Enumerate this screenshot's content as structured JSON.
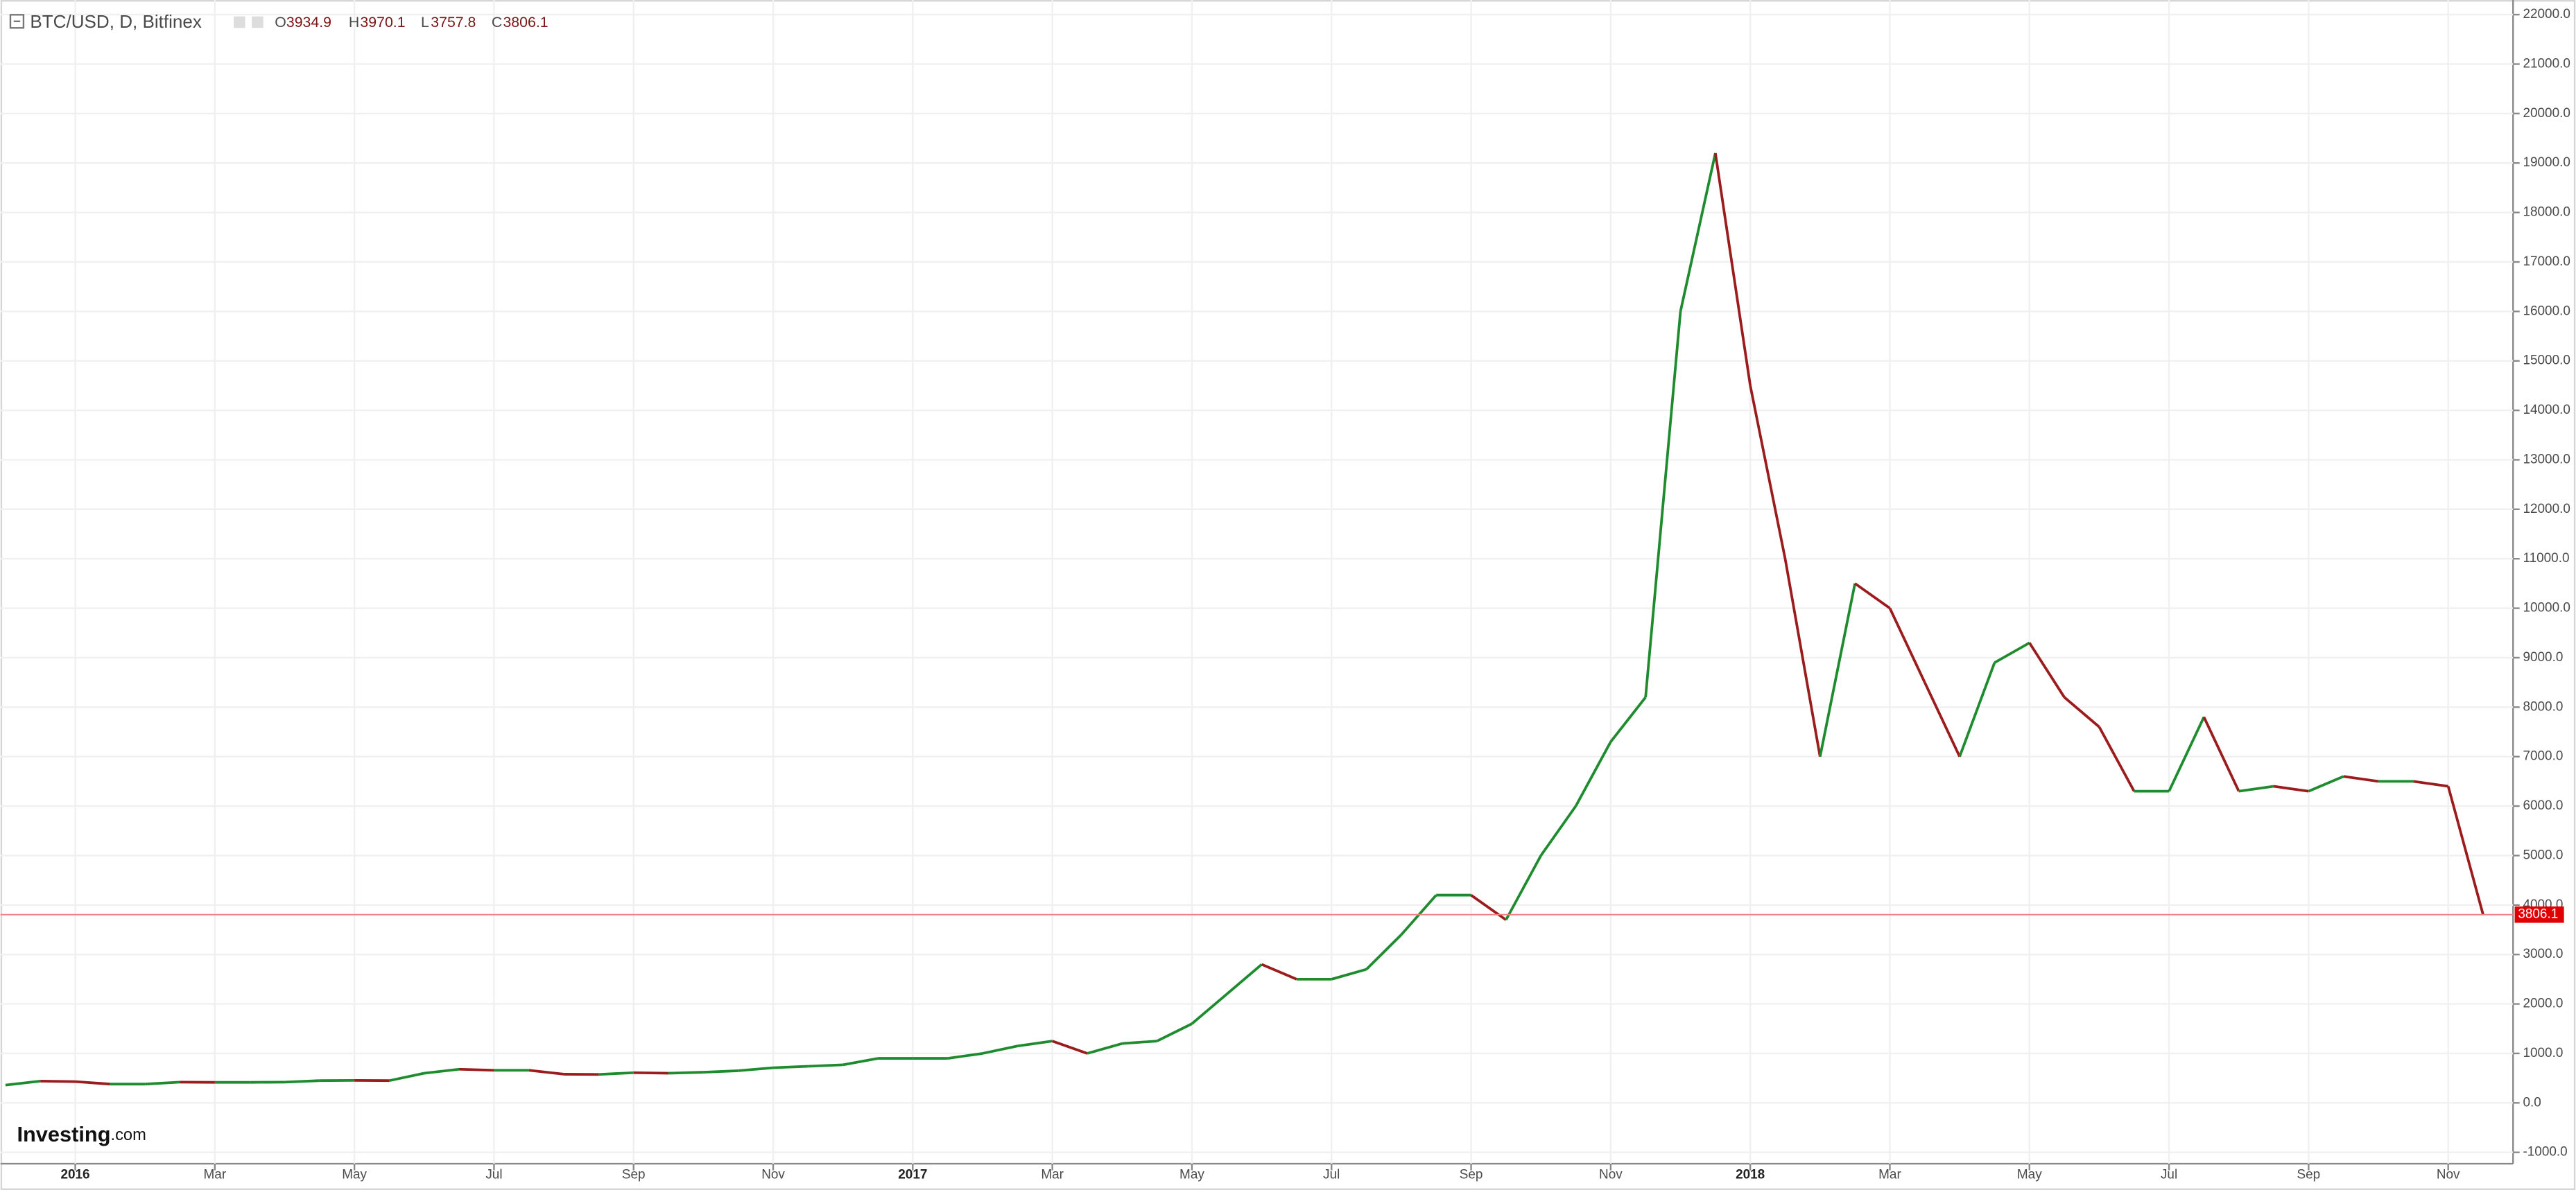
{
  "header": {
    "title": "BTC/USD, D, Bitfinex",
    "open_label": "O",
    "open": "3934.9",
    "high_label": "H",
    "high": "3970.1",
    "low_label": "L",
    "low": "3757.8",
    "close_label": "C",
    "close": "3806.1"
  },
  "logo": {
    "brand": "Investing",
    "suffix": ".com"
  },
  "chart_data": {
    "type": "line",
    "categories": [
      null,
      null,
      "2016",
      null,
      null,
      null,
      "Mar",
      null,
      null,
      null,
      "May",
      null,
      null,
      null,
      "Jul",
      null,
      null,
      null,
      "Sep",
      null,
      null,
      null,
      "Nov",
      null,
      null,
      null,
      "2017",
      null,
      null,
      null,
      "Mar",
      null,
      null,
      null,
      "May",
      null,
      null,
      null,
      "Jul",
      null,
      null,
      null,
      "Sep",
      null,
      null,
      null,
      "Nov",
      null,
      null,
      null,
      "2018",
      null,
      null,
      null,
      "Mar",
      null,
      null,
      null,
      "May",
      null,
      null,
      null,
      "Jul",
      null,
      null,
      null,
      "Sep",
      null,
      null,
      null,
      "Nov",
      null
    ],
    "series": [
      {
        "name": "BTC/USD",
        "up_color": "#1e8c2e",
        "down_color": "#9b1c1c",
        "values": [
          360,
          440,
          430,
          380,
          380,
          420,
          415,
          415,
          420,
          450,
          455,
          450,
          600,
          680,
          660,
          660,
          580,
          575,
          610,
          600,
          620,
          650,
          710,
          740,
          770,
          900,
          900,
          900,
          1000,
          1150,
          1250,
          1000,
          1200,
          1250,
          1600,
          2200,
          2800,
          2500,
          2500,
          2700,
          3400,
          4200,
          4200,
          3700,
          5000,
          6000,
          7300,
          8200,
          16000,
          19200,
          14500,
          11000,
          7000,
          10500,
          10000,
          8500,
          7000,
          8900,
          9300,
          8200,
          7600,
          6300,
          6300,
          7800,
          6300,
          6400,
          6300,
          6600,
          6500,
          6500,
          6400,
          3806.1
        ]
      }
    ],
    "last_value": {
      "value": 3806.1,
      "label": "3806.1"
    },
    "ylim": [
      -1230,
      22030
    ],
    "yticks": [
      {
        "value": -1000,
        "label": "-1000.0"
      },
      {
        "value": 0,
        "label": "0.0"
      },
      {
        "value": 1000,
        "label": "1000.0"
      },
      {
        "value": 2000,
        "label": "2000.0"
      },
      {
        "value": 3000,
        "label": "3000.0"
      },
      {
        "value": 4000,
        "label": "4000.0"
      },
      {
        "value": 5000,
        "label": "5000.0"
      },
      {
        "value": 6000,
        "label": "6000.0"
      },
      {
        "value": 7000,
        "label": "7000.0"
      },
      {
        "value": 8000,
        "label": "8000.0"
      },
      {
        "value": 9000,
        "label": "9000.0"
      },
      {
        "value": 10000,
        "label": "10000.0"
      },
      {
        "value": 11000,
        "label": "11000.0"
      },
      {
        "value": 12000,
        "label": "12000.0"
      },
      {
        "value": 13000,
        "label": "13000.0"
      },
      {
        "value": 14000,
        "label": "14000.0"
      },
      {
        "value": 15000,
        "label": "15000.0"
      },
      {
        "value": 16000,
        "label": "16000.0"
      },
      {
        "value": 17000,
        "label": "17000.0"
      },
      {
        "value": 18000,
        "label": "18000.0"
      },
      {
        "value": 19000,
        "label": "19000.0"
      },
      {
        "value": 20000,
        "label": "20000.0"
      },
      {
        "value": 21000,
        "label": "21000.0"
      },
      {
        "value": 22000,
        "label": "22000.0"
      }
    ],
    "grid": true
  }
}
